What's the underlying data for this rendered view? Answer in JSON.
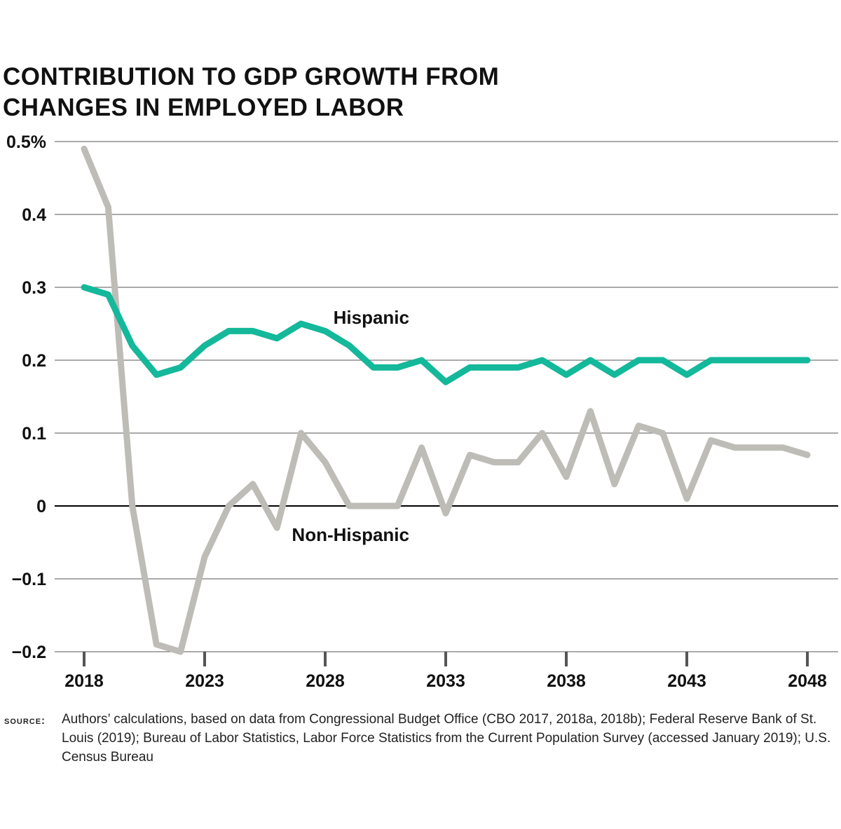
{
  "title_lines": [
    "CONTRIBUTION TO GDP GROWTH FROM",
    "CHANGES IN EMPLOYED LABOR"
  ],
  "source": {
    "label": "SOURCE:",
    "text": "Authors’ calculations, based on data from Congressional Budget Office (CBO 2017, 2018a, 2018b); Federal Reserve Bank of St. Louis (2019); Bureau of Labor Statistics, Labor Force Statistics from the Current Population Survey (accessed January 2019); U.S. Census Bureau"
  },
  "chart_data": {
    "type": "line",
    "title": "CONTRIBUTION TO GDP GROWTH FROM CHANGES IN EMPLOYED LABOR",
    "xlabel": "",
    "ylabel": "",
    "xlim": [
      2018,
      2048
    ],
    "ylim": [
      -0.2,
      0.5
    ],
    "x_ticks": [
      2018,
      2023,
      2028,
      2033,
      2038,
      2043,
      2048
    ],
    "x_tick_labels": [
      "2018",
      "2023",
      "2028",
      "2033",
      "2038",
      "2043",
      "2048"
    ],
    "y_ticks": [
      -0.2,
      -0.1,
      0,
      0.1,
      0.2,
      0.3,
      0.4,
      0.5
    ],
    "y_tick_labels": [
      "−0.2",
      "−0.1",
      "0",
      "0.1",
      "0.2",
      "0.3",
      "0.4",
      "0.5%"
    ],
    "grid": true,
    "x": [
      2018,
      2019,
      2020,
      2021,
      2022,
      2023,
      2024,
      2025,
      2026,
      2027,
      2028,
      2029,
      2030,
      2031,
      2032,
      2033,
      2034,
      2035,
      2036,
      2037,
      2038,
      2039,
      2040,
      2041,
      2042,
      2043,
      2044,
      2045,
      2046,
      2047,
      2048
    ],
    "series": [
      {
        "name": "Hispanic",
        "color": "#14b89a",
        "values": [
          0.3,
          0.29,
          0.22,
          0.18,
          0.19,
          0.22,
          0.24,
          0.24,
          0.23,
          0.25,
          0.24,
          0.22,
          0.19,
          0.19,
          0.2,
          0.17,
          0.19,
          0.19,
          0.19,
          0.2,
          0.18,
          0.2,
          0.18,
          0.2,
          0.2,
          0.18,
          0.2,
          0.2,
          0.2,
          0.2,
          0.2
        ]
      },
      {
        "name": "Non-Hispanic",
        "color": "#bdbcb7",
        "values": [
          0.49,
          0.41,
          0.0,
          -0.19,
          -0.2,
          -0.07,
          0.0,
          0.03,
          -0.03,
          0.1,
          0.06,
          0.0,
          0.0,
          0.0,
          0.08,
          -0.01,
          0.07,
          0.06,
          0.06,
          0.1,
          0.04,
          0.13,
          0.03,
          0.11,
          0.1,
          0.01,
          0.09,
          0.08,
          0.08,
          0.08,
          0.07
        ]
      }
    ],
    "annotations": [
      {
        "text": "Hispanic",
        "series": "Hispanic"
      },
      {
        "text": "Non-Hispanic",
        "series": "Non-Hispanic"
      }
    ],
    "colors": {
      "grid": "#777777",
      "zero_line": "#000000",
      "tick_mark": "#555555"
    }
  }
}
